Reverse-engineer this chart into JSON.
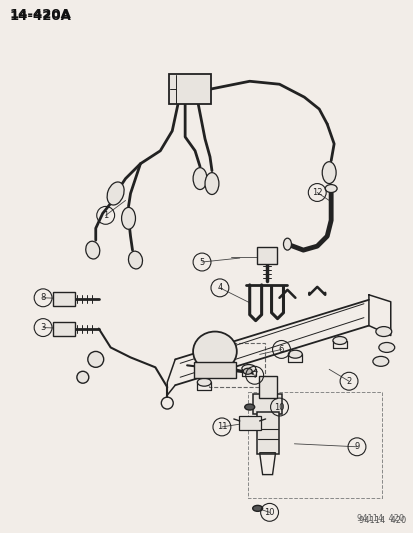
{
  "title": "14-420A",
  "footer": "94114  420",
  "bg_color": "#f2ede8",
  "line_color": "#222222",
  "figsize": [
    4.14,
    5.33
  ],
  "dpi": 100,
  "lw_wire": 2.0,
  "lw_part": 1.2,
  "lw_thin": 0.8,
  "connector_color": "#333333"
}
